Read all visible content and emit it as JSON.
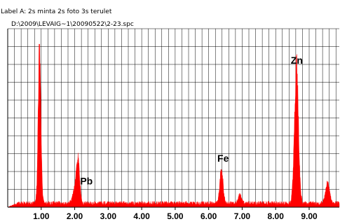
{
  "header": {
    "label_line": "Label A: 2s minta 2s foto 3s terulet",
    "path_line": "D:\\2009\\LEVAIG~1\\20090522\\2-23.spc"
  },
  "chart_data": {
    "type": "line",
    "title": "",
    "xlabel": "",
    "ylabel": "",
    "xlim": [
      0.0,
      9.9
    ],
    "ylim": [
      0,
      100
    ],
    "grid": true,
    "x_ticks": [
      {
        "value": 1.0,
        "label": "1.00"
      },
      {
        "value": 2.0,
        "label": "2.00"
      },
      {
        "value": 3.0,
        "label": "3.00"
      },
      {
        "value": 4.0,
        "label": "4.00"
      },
      {
        "value": 5.0,
        "label": "5.00"
      },
      {
        "value": 6.0,
        "label": "6.00"
      },
      {
        "value": 7.0,
        "label": "7.00"
      },
      {
        "value": 8.0,
        "label": "8.00"
      },
      {
        "value": 9.0,
        "label": "9.00"
      }
    ],
    "fill_color": "#ff0000",
    "background_level": 2.5,
    "peaks": [
      {
        "x": 0.95,
        "y": 100,
        "width": 0.04
      },
      {
        "x": 2.1,
        "y": 25,
        "width": 0.05
      },
      {
        "x": 2.0,
        "y": 8,
        "width": 0.06
      },
      {
        "x": 6.38,
        "y": 20,
        "width": 0.05
      },
      {
        "x": 6.93,
        "y": 5,
        "width": 0.05
      },
      {
        "x": 8.62,
        "y": 83,
        "width": 0.06
      },
      {
        "x": 9.55,
        "y": 13,
        "width": 0.06
      }
    ],
    "annotations": [
      {
        "text": "Pb",
        "x": 2.35,
        "y": 14
      },
      {
        "text": "Fe",
        "x": 6.43,
        "y": 28
      },
      {
        "text": "Zn",
        "x": 8.63,
        "y": 88
      }
    ]
  }
}
